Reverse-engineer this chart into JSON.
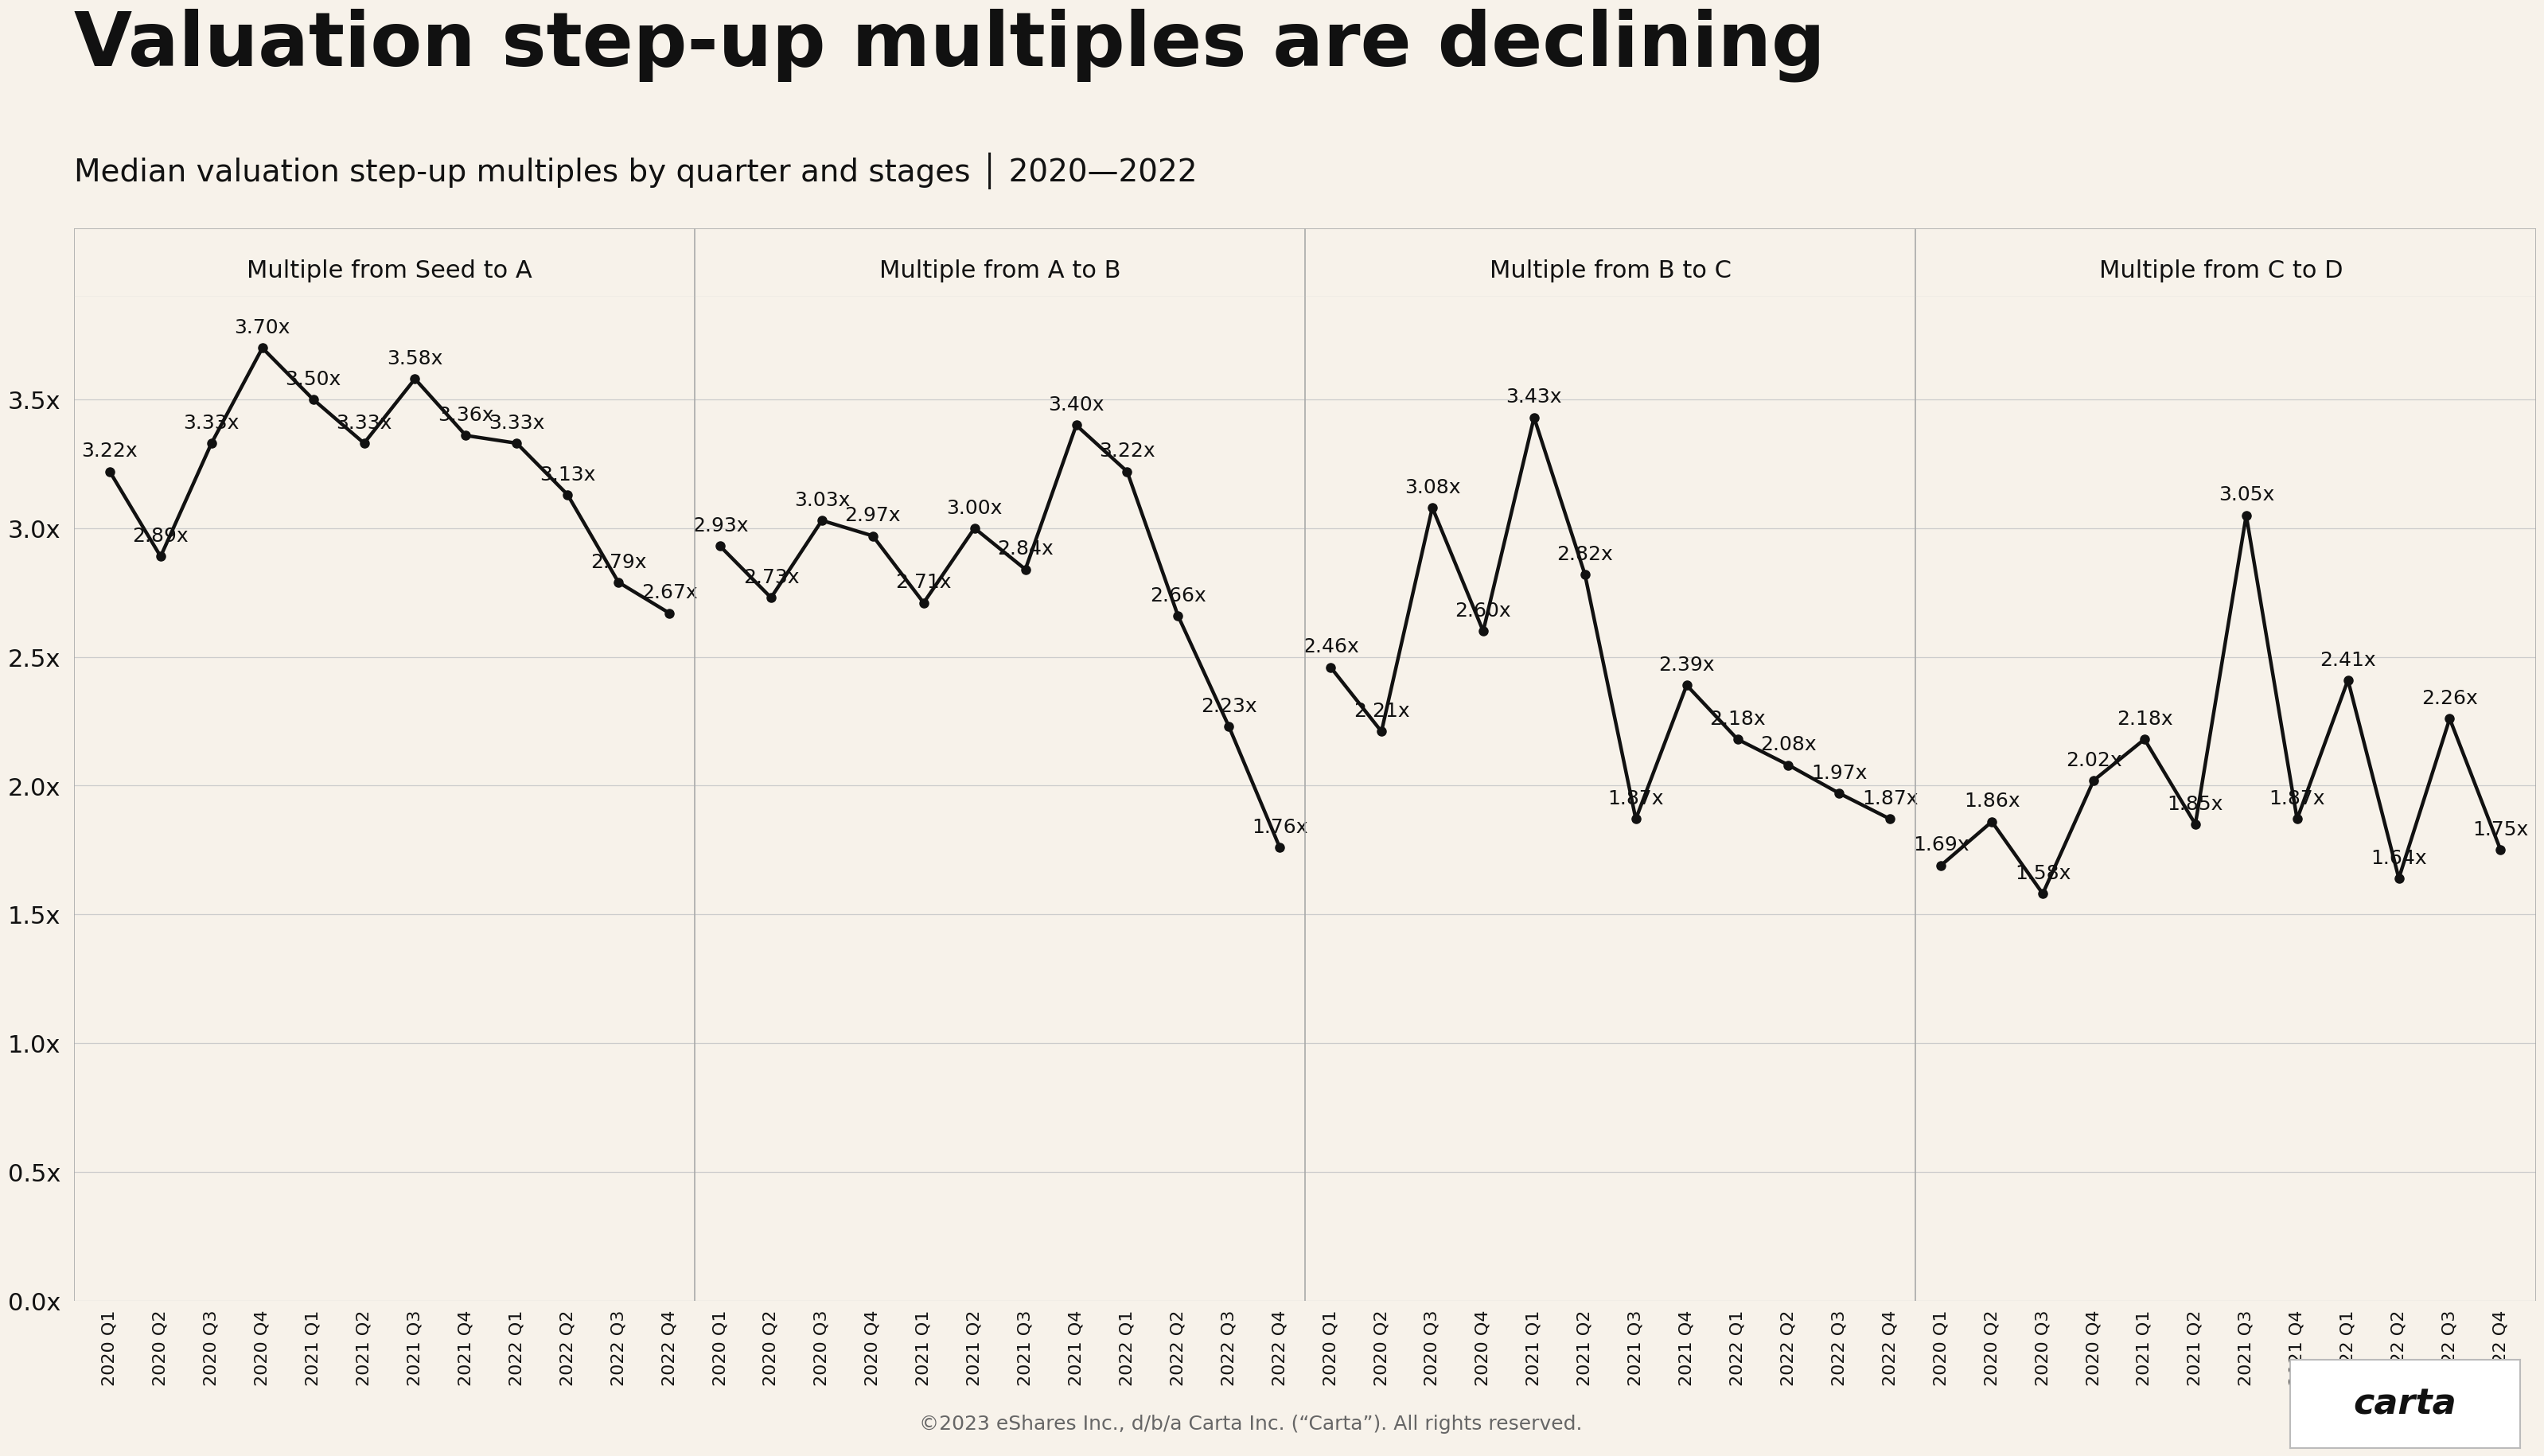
{
  "title": "Valuation step-up multiples are declining",
  "subtitle": "Median valuation step-up multiples by quarter and stages │ 2020—2022",
  "footer": "©2023 eShares Inc., d/b/a Carta Inc. (“Carta”). All rights reserved.",
  "background_color": "#f7f2ea",
  "text_color": "#111111",
  "sections": [
    {
      "label": "Multiple from Seed to A",
      "quarters": [
        "2020 Q1",
        "2020 Q2",
        "2020 Q3",
        "2020 Q4",
        "2021 Q1",
        "2021 Q2",
        "2021 Q3",
        "2021 Q4",
        "2022 Q1",
        "2022 Q2",
        "2022 Q3",
        "2022 Q4"
      ],
      "values": [
        3.22,
        2.89,
        3.33,
        3.7,
        3.5,
        3.33,
        3.58,
        3.36,
        3.33,
        3.13,
        2.79,
        2.67
      ]
    },
    {
      "label": "Multiple from A to B",
      "quarters": [
        "2020 Q1",
        "2020 Q2",
        "2020 Q3",
        "2020 Q4",
        "2021 Q1",
        "2021 Q2",
        "2021 Q3",
        "2021 Q4",
        "2022 Q1",
        "2022 Q2",
        "2022 Q3",
        "2022 Q4"
      ],
      "values": [
        2.93,
        2.73,
        3.03,
        2.97,
        2.71,
        3.0,
        2.84,
        3.4,
        3.22,
        2.66,
        2.23,
        1.76
      ]
    },
    {
      "label": "Multiple from B to C",
      "quarters": [
        "2020 Q1",
        "2020 Q2",
        "2020 Q3",
        "2020 Q4",
        "2021 Q1",
        "2021 Q2",
        "2021 Q3",
        "2021 Q4",
        "2022 Q1",
        "2022 Q2",
        "2022 Q3",
        "2022 Q4"
      ],
      "values": [
        2.46,
        2.21,
        3.08,
        2.6,
        3.43,
        2.82,
        1.87,
        2.39,
        2.18,
        2.08,
        1.97,
        1.87
      ]
    },
    {
      "label": "Multiple from C to D",
      "quarters": [
        "2020 Q1",
        "2020 Q2",
        "2020 Q3",
        "2020 Q4",
        "2021 Q1",
        "2021 Q2",
        "2021 Q3",
        "2021 Q4",
        "2022 Q1",
        "2022 Q2",
        "2022 Q3",
        "2022 Q4"
      ],
      "values": [
        1.69,
        1.86,
        1.58,
        2.02,
        2.18,
        1.85,
        3.05,
        1.87,
        2.41,
        1.64,
        2.26,
        1.75
      ]
    }
  ],
  "yticks": [
    0.0,
    0.5,
    1.0,
    1.5,
    2.0,
    2.5,
    3.0,
    3.5
  ],
  "ylim": [
    0.0,
    3.9
  ],
  "line_color": "#111111",
  "line_width": 3.2,
  "marker_size": 8,
  "divider_color": "#aaaaaa",
  "grid_color": "#cccccc",
  "title_fontsize": 68,
  "subtitle_fontsize": 28,
  "section_label_fontsize": 22,
  "annotation_fontsize": 18,
  "ytick_fontsize": 22,
  "xtick_fontsize": 16,
  "footer_fontsize": 18
}
